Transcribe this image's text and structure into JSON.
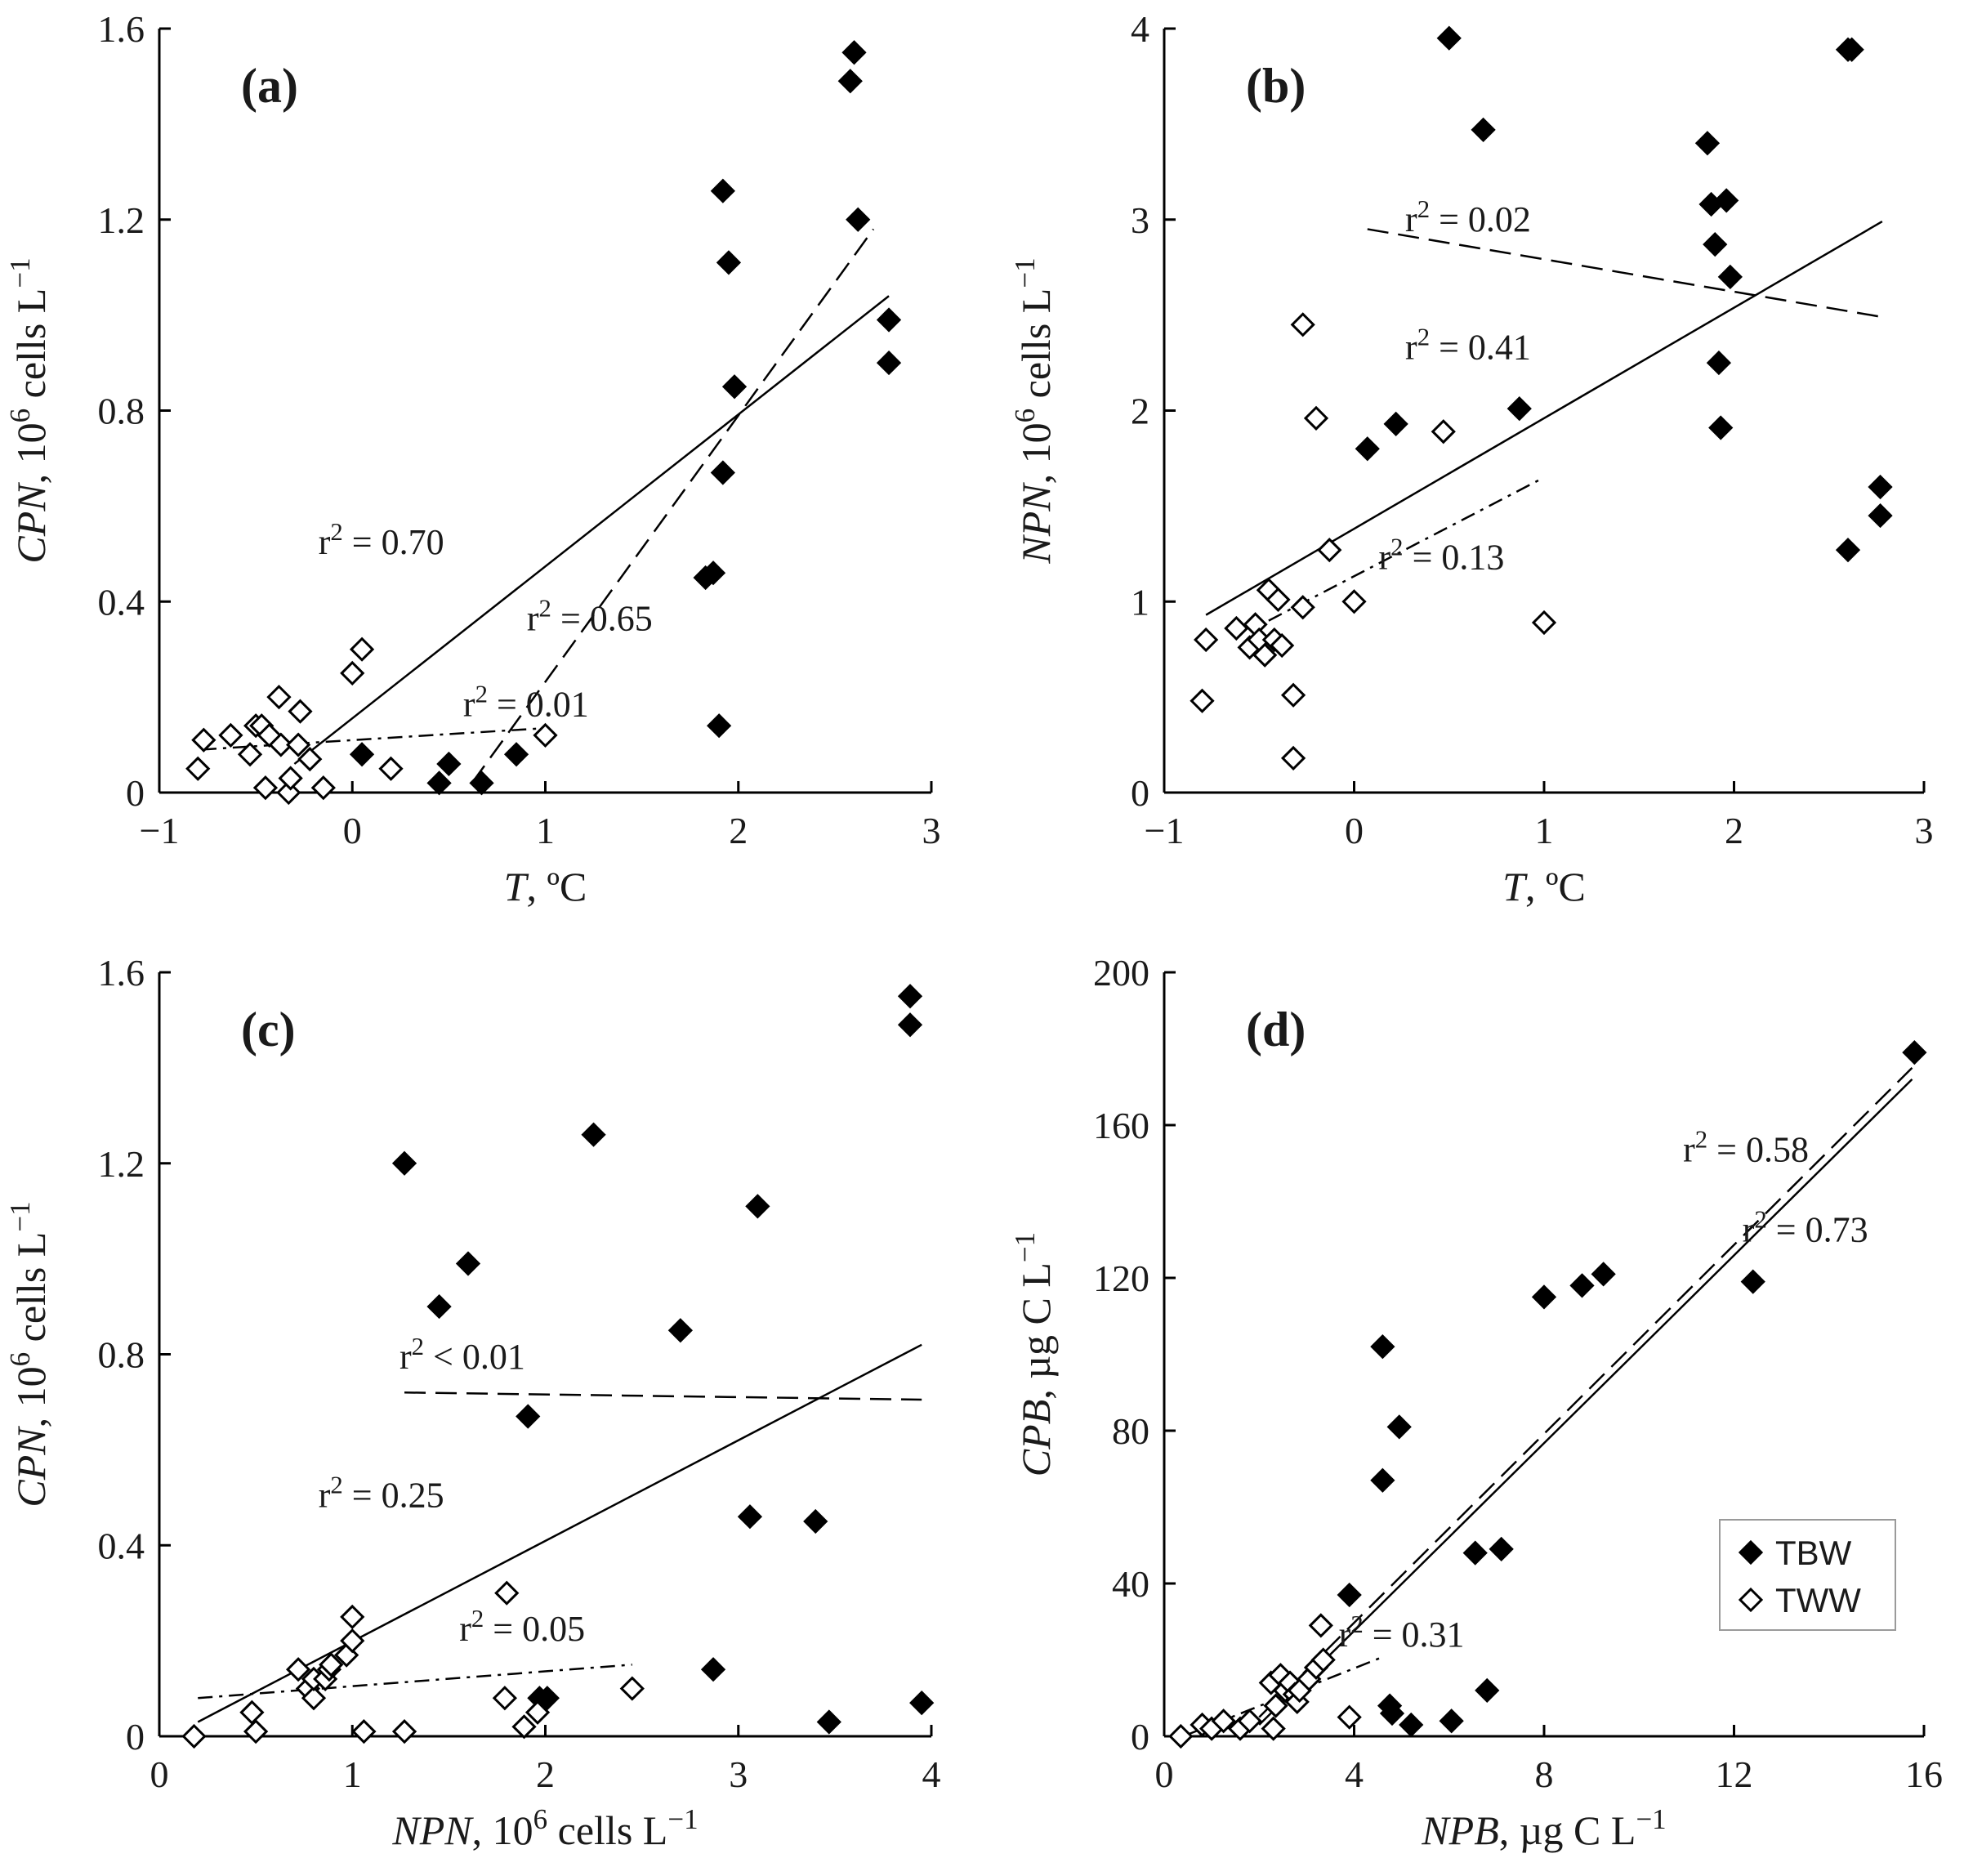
{
  "chart_data": [
    {
      "type": "scatter",
      "panel_label": "(a)",
      "xlabel": {
        "var": "T",
        "rest": ", ºC"
      },
      "ylabel": {
        "var": "CPN",
        "rest": ", 10",
        "sup": "6",
        "rest2": " cells L",
        "sup2": "−1"
      },
      "xlim": [
        -1,
        3
      ],
      "ylim": [
        0,
        1.6
      ],
      "xticks": [
        "-1",
        "0",
        "1",
        "2",
        "3"
      ],
      "yticks": [
        "0",
        "0.4",
        "0.8",
        "1.2",
        "1.6"
      ],
      "series": [
        {
          "name": "TBW",
          "marker": "filled",
          "x": [
            0.05,
            0.45,
            0.5,
            0.67,
            0.85,
            1.83,
            1.87,
            1.9,
            1.92,
            1.92,
            1.95,
            1.98,
            2.58,
            2.6,
            2.62,
            2.78,
            2.78
          ],
          "y": [
            0.08,
            0.02,
            0.06,
            0.02,
            0.08,
            0.45,
            0.46,
            0.14,
            1.26,
            0.67,
            1.11,
            0.85,
            1.49,
            1.55,
            1.2,
            0.99,
            0.9
          ]
        },
        {
          "name": "TWW",
          "marker": "open",
          "x": [
            -0.8,
            -0.77,
            -0.63,
            -0.53,
            -0.5,
            -0.47,
            -0.45,
            -0.43,
            -0.38,
            -0.37,
            -0.33,
            -0.32,
            -0.28,
            -0.27,
            -0.22,
            -0.15,
            0.0,
            0.05,
            0.2,
            1.0
          ],
          "y": [
            0.05,
            0.11,
            0.12,
            0.08,
            0.14,
            0.14,
            0.01,
            0.12,
            0.2,
            0.1,
            0.0,
            0.03,
            0.1,
            0.17,
            0.07,
            0.01,
            0.25,
            0.3,
            0.05,
            0.12
          ]
        }
      ],
      "fits": [
        {
          "label": "r² = 0.70",
          "style": "solid",
          "x": [
            -0.3,
            2.78
          ],
          "y": [
            0.06,
            1.04
          ],
          "label_pos": [
            0.15,
            0.5
          ]
        },
        {
          "label": "r² = 0.65",
          "style": "dashed",
          "x": [
            0.62,
            2.7
          ],
          "y": [
            0.02,
            1.18
          ],
          "label_pos": [
            1.23,
            0.34
          ]
        },
        {
          "label": "r² = 0.01",
          "style": "dashdot",
          "x": [
            -0.78,
            1.0
          ],
          "y": [
            0.09,
            0.135
          ],
          "label_pos": [
            0.9,
            0.16
          ]
        }
      ]
    },
    {
      "type": "scatter",
      "panel_label": "(b)",
      "xlabel": {
        "var": "T",
        "rest": ", ºC"
      },
      "ylabel": {
        "var": "NPN",
        "rest": ", 10",
        "sup": "6",
        "rest2": " cells L",
        "sup2": "−1"
      },
      "xlim": [
        -1,
        3
      ],
      "ylim": [
        0,
        4
      ],
      "xticks": [
        "-1",
        "0",
        "1",
        "2",
        "3"
      ],
      "yticks": [
        "0",
        "1",
        "2",
        "3",
        "4"
      ],
      "series": [
        {
          "name": "TBW",
          "marker": "filled",
          "x": [
            0.07,
            0.22,
            0.5,
            0.68,
            0.87,
            1.86,
            1.88,
            1.9,
            1.92,
            1.93,
            1.96,
            1.98,
            2.6,
            2.6,
            2.62,
            2.77,
            2.77
          ],
          "y": [
            1.8,
            1.93,
            3.95,
            3.47,
            2.01,
            3.4,
            3.08,
            2.87,
            2.25,
            1.91,
            3.1,
            2.7,
            3.89,
            1.27,
            3.89,
            1.6,
            1.45
          ]
        },
        {
          "name": "TWW",
          "marker": "open",
          "x": [
            -0.8,
            -0.78,
            -0.62,
            -0.55,
            -0.52,
            -0.5,
            -0.47,
            -0.45,
            -0.42,
            -0.4,
            -0.38,
            -0.32,
            -0.32,
            -0.27,
            -0.27,
            -0.2,
            -0.13,
            0.0,
            0.47,
            1.0
          ],
          "y": [
            0.48,
            0.8,
            0.86,
            0.76,
            0.88,
            0.8,
            0.72,
            1.06,
            0.8,
            1.01,
            0.77,
            0.51,
            0.18,
            0.97,
            2.45,
            1.96,
            1.27,
            1.0,
            1.89,
            0.89
          ]
        }
      ],
      "fits": [
        {
          "label": "r² = 0.41",
          "style": "solid",
          "x": [
            -0.78,
            2.78
          ],
          "y": [
            0.93,
            2.99
          ],
          "label_pos": [
            0.6,
            2.27
          ]
        },
        {
          "label": "r² = 0.02",
          "style": "dashed",
          "x": [
            0.07,
            2.78
          ],
          "y": [
            2.95,
            2.49
          ],
          "label_pos": [
            0.6,
            2.94
          ]
        },
        {
          "label": "r² = 0.13",
          "style": "dashdot",
          "x": [
            -0.45,
            1.0
          ],
          "y": [
            0.9,
            1.65
          ],
          "label_pos": [
            0.46,
            1.17
          ]
        }
      ]
    },
    {
      "type": "scatter",
      "panel_label": "(c)",
      "xlabel": {
        "var": "NPN",
        "rest": ", 10",
        "sup": "6",
        "rest2": " cells L",
        "sup2": "−1"
      },
      "ylabel": {
        "var": "CPN",
        "rest": ", 10",
        "sup": "6",
        "rest2": " cells L",
        "sup2": "−1"
      },
      "xlim": [
        0,
        4
      ],
      "ylim": [
        0,
        1.6
      ],
      "xticks": [
        "0",
        "1",
        "2",
        "3",
        "4"
      ],
      "yticks": [
        "0",
        "0.4",
        "0.8",
        "1.2",
        "1.6"
      ],
      "series": [
        {
          "name": "TBW",
          "marker": "filled",
          "x": [
            1.27,
            1.45,
            1.6,
            1.91,
            1.97,
            2.01,
            2.25,
            2.7,
            2.87,
            3.06,
            3.1,
            3.4,
            3.47,
            3.89,
            3.89,
            3.95
          ],
          "y": [
            1.2,
            0.9,
            0.99,
            0.67,
            0.08,
            0.08,
            1.26,
            0.85,
            0.14,
            0.46,
            1.11,
            0.45,
            0.03,
            1.55,
            1.49,
            0.07
          ]
        },
        {
          "name": "TWW",
          "marker": "open",
          "x": [
            0.18,
            0.48,
            0.5,
            0.72,
            0.77,
            0.8,
            0.8,
            0.86,
            0.88,
            0.89,
            0.97,
            1.0,
            1.0,
            1.06,
            1.27,
            1.79,
            1.8,
            1.89,
            1.96,
            2.45
          ],
          "y": [
            0.0,
            0.05,
            0.01,
            0.14,
            0.1,
            0.08,
            0.12,
            0.12,
            0.14,
            0.15,
            0.17,
            0.25,
            0.2,
            0.01,
            0.01,
            0.08,
            0.3,
            0.02,
            0.05,
            0.1
          ]
        }
      ],
      "fits": [
        {
          "label": "r² = 0.25",
          "style": "solid",
          "x": [
            0.2,
            3.95
          ],
          "y": [
            0.03,
            0.82
          ],
          "label_pos": [
            1.15,
            0.48
          ]
        },
        {
          "label": "r² < 0.01",
          "style": "dashed",
          "x": [
            1.27,
            3.95
          ],
          "y": [
            0.72,
            0.705
          ],
          "label_pos": [
            1.57,
            0.77
          ]
        },
        {
          "label": "r² = 0.05",
          "style": "dashdot",
          "x": [
            0.2,
            2.45
          ],
          "y": [
            0.08,
            0.15
          ],
          "label_pos": [
            1.88,
            0.2
          ]
        }
      ]
    },
    {
      "type": "scatter",
      "panel_label": "(d)",
      "xlabel": {
        "var": "NPB",
        "rest": ", µg C L",
        "sup": "−1"
      },
      "ylabel": {
        "var": "CPB",
        "rest": ", µg C L",
        "sup": "−1"
      },
      "xlim": [
        0,
        16
      ],
      "ylim": [
        0,
        200
      ],
      "xticks": [
        "0",
        "4",
        "8",
        "12",
        "16"
      ],
      "yticks": [
        "0",
        "40",
        "80",
        "120",
        "160",
        "200"
      ],
      "series": [
        {
          "name": "TBW",
          "marker": "filled",
          "x": [
            3.9,
            4.6,
            4.6,
            4.75,
            4.8,
            4.95,
            5.2,
            6.05,
            6.55,
            6.8,
            7.1,
            8.0,
            8.8,
            9.25,
            12.4,
            15.8
          ],
          "y": [
            37.0,
            102.0,
            67.0,
            8.0,
            6.0,
            81.0,
            3.0,
            4.0,
            48.0,
            12.0,
            49.0,
            115.0,
            118.0,
            121.0,
            119.0,
            179.0
          ]
        },
        {
          "name": "TWW",
          "marker": "open",
          "x": [
            0.35,
            0.8,
            1.0,
            1.25,
            1.6,
            1.8,
            2.25,
            2.3,
            2.35,
            2.45,
            2.55,
            2.65,
            2.75,
            2.8,
            2.85,
            3.05,
            3.2,
            3.3,
            3.35,
            3.9
          ],
          "y": [
            0.0,
            3.0,
            2.0,
            4.0,
            2.0,
            4.0,
            14.0,
            2.0,
            8.0,
            16.0,
            12.0,
            14.0,
            11.0,
            9.0,
            12.0,
            15.0,
            18.0,
            29.0,
            20.0,
            5.0
          ]
        }
      ],
      "fits": [
        {
          "label": "r² = 0.58",
          "style": "dashed",
          "x": [
            2.0,
            15.75
          ],
          "y": [
            5.0,
            175.0
          ],
          "label_pos": [
            12.25,
            150.5
          ]
        },
        {
          "label": "r² = 0.73",
          "style": "solid",
          "x": [
            2.0,
            15.75
          ],
          "y": [
            3.0,
            172.0
          ],
          "label_pos": [
            13.5,
            129.5
          ]
        },
        {
          "label": "r² = 0.31",
          "style": "dashdot",
          "x": [
            0.4,
            4.65
          ],
          "y": [
            0.0,
            21.0
          ],
          "label_pos": [
            5.0,
            23.5
          ]
        }
      ],
      "legend": {
        "position": "bottom-right",
        "entries": [
          {
            "label": "TBW",
            "marker": "filled"
          },
          {
            "label": "TWW",
            "marker": "open"
          }
        ]
      }
    }
  ]
}
